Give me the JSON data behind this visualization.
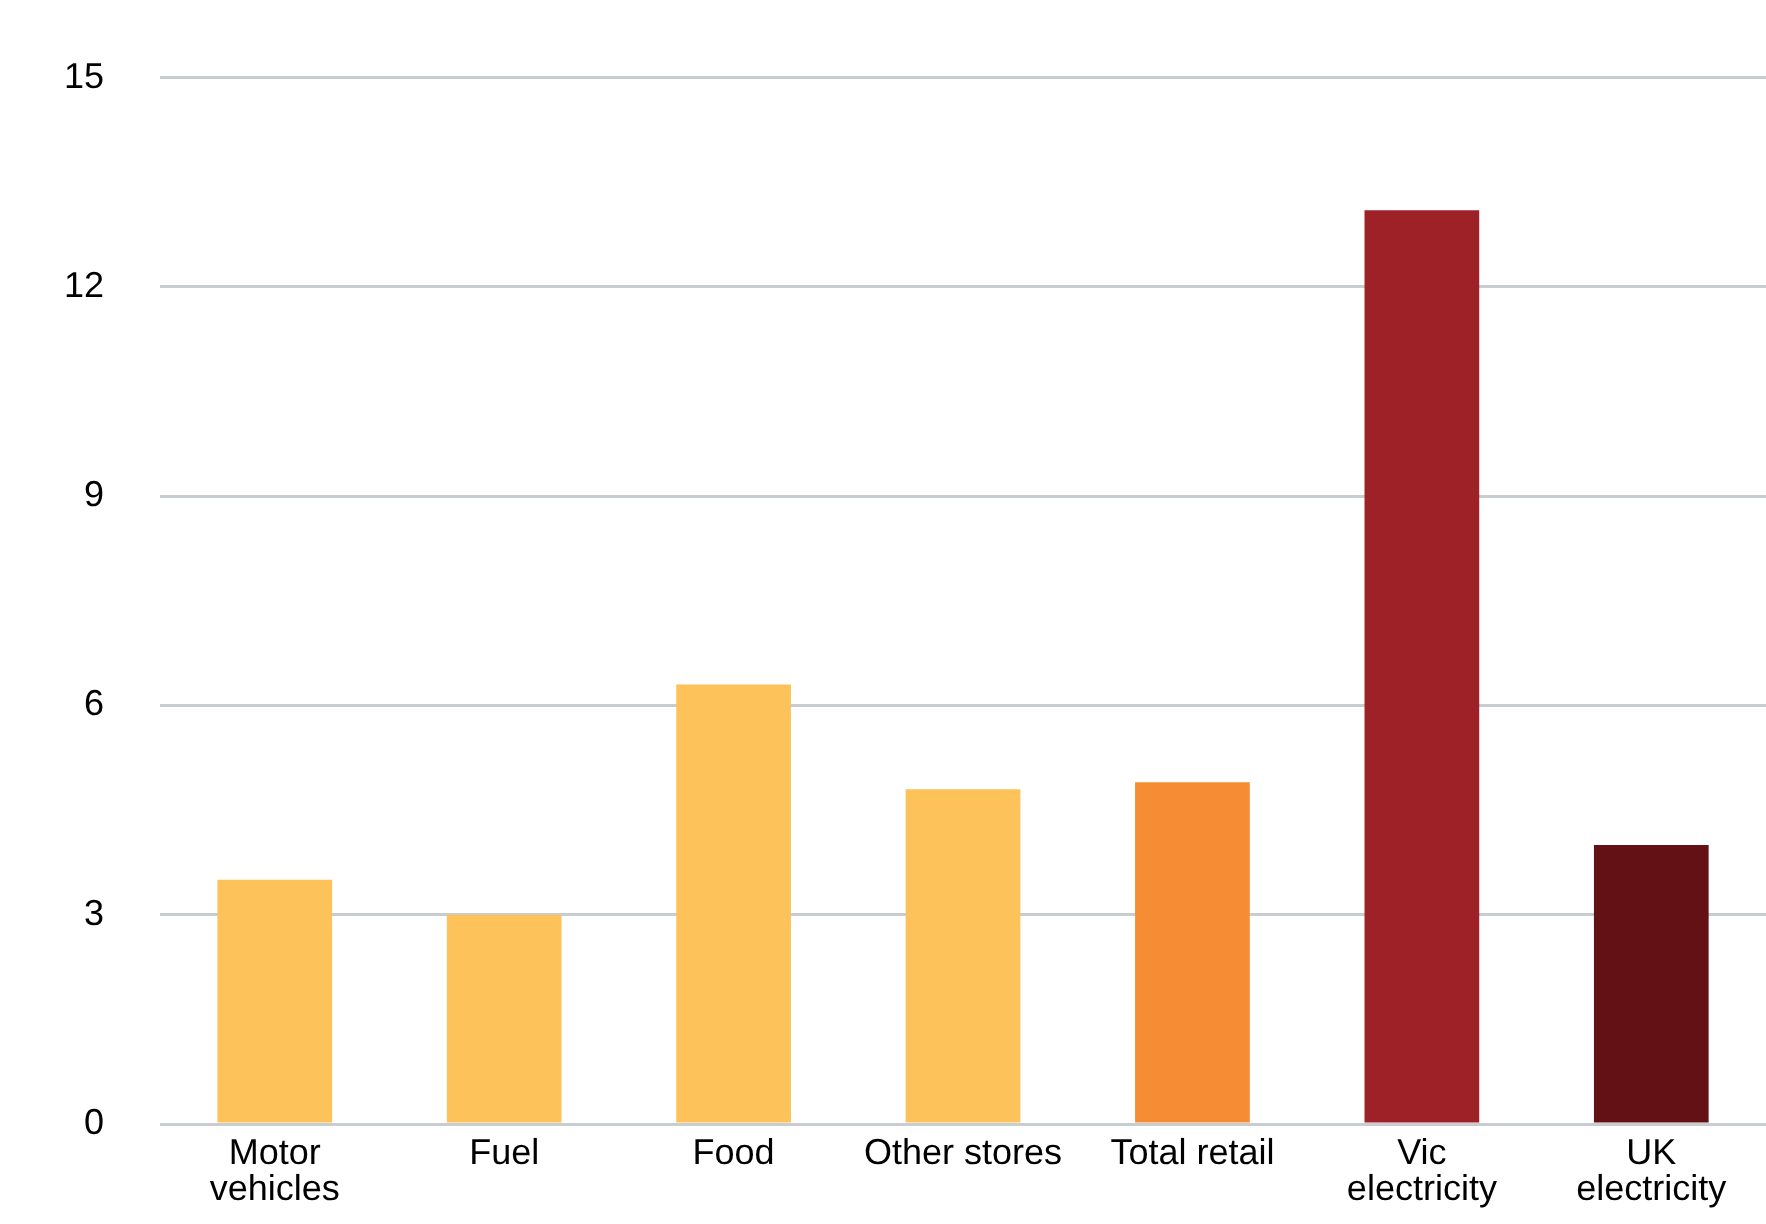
{
  "chart_data": {
    "type": "bar",
    "categories": [
      "Motor vehicles",
      "Fuel",
      "Food",
      "Other stores",
      "Total retail",
      "Vic electricity",
      "UK electricity"
    ],
    "values": [
      3.5,
      3.0,
      6.3,
      4.8,
      4.9,
      13.1,
      4.0
    ],
    "colors": [
      "#fdc25a",
      "#fdc25a",
      "#fdc25a",
      "#fdc25a",
      "#f68c33",
      "#9e2127",
      "#641116"
    ],
    "ylim": [
      0,
      15
    ],
    "yticks": [
      0,
      3,
      6,
      9,
      12,
      15
    ],
    "grid": "y",
    "legend": false
  }
}
